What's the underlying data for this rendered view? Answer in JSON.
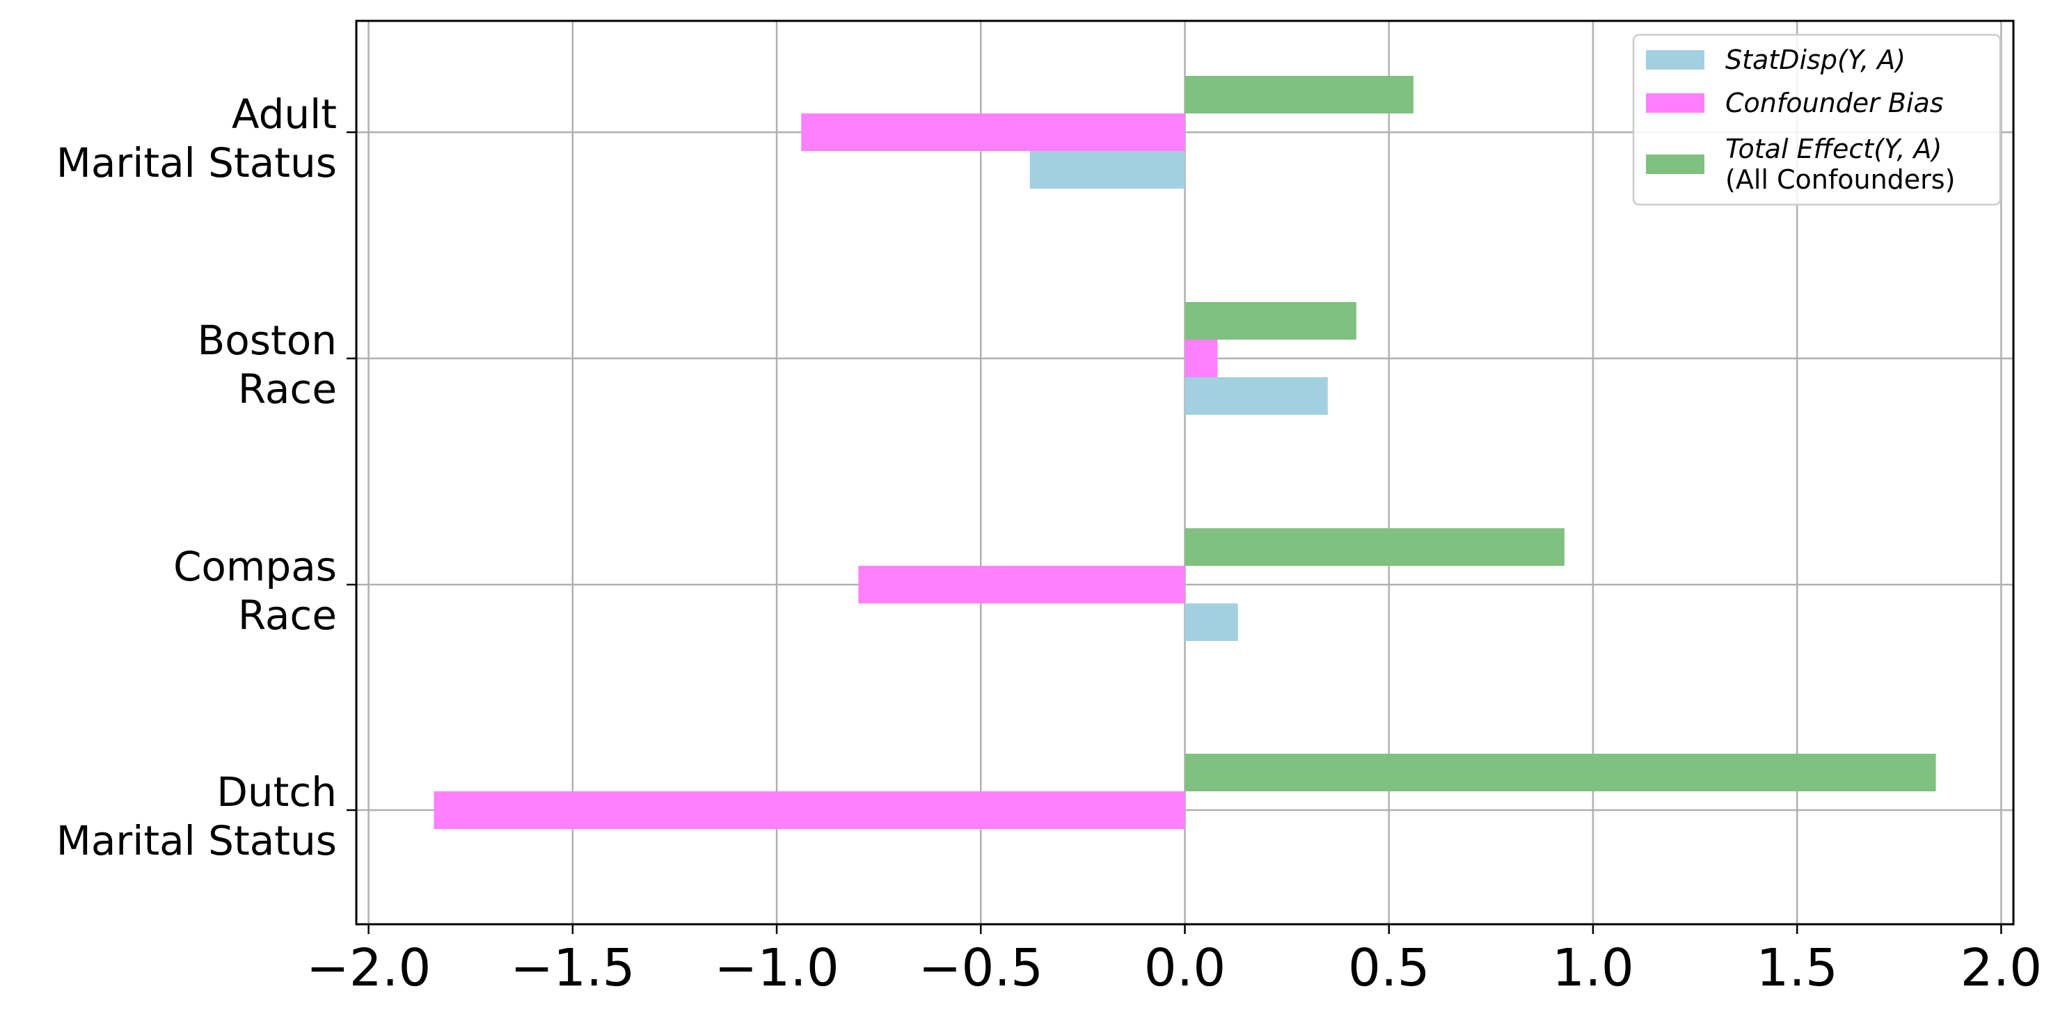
{
  "chart_data": {
    "type": "bar",
    "orientation": "horizontal",
    "categories": [
      [
        "Adult",
        "Marital Status"
      ],
      [
        "Boston",
        "Race"
      ],
      [
        "Compas",
        "Race"
      ],
      [
        "Dutch",
        "Marital Status"
      ]
    ],
    "series": [
      {
        "name": "StatDisp(Y, A)",
        "legend_lines": [
          "StatDisp(Y, A)"
        ],
        "color": "#a3d0e0",
        "values": [
          -0.38,
          0.35,
          0.13,
          0.0
        ]
      },
      {
        "name": "Confounder Bias",
        "legend_lines": [
          "Confounder Bias"
        ],
        "color": "#ff80ff",
        "values": [
          -0.94,
          0.08,
          -0.8,
          -1.84
        ]
      },
      {
        "name": "Total Effect(Y, A) (All Confounders)",
        "legend_lines": [
          "Total Effect(Y, A)",
          " (All Confounders)"
        ],
        "color": "#80c080",
        "values": [
          0.56,
          0.42,
          0.93,
          1.84
        ]
      }
    ],
    "x_ticks": [
      "−2.0",
      "−1.5",
      "−1.0",
      "−0.5",
      "0.0",
      "0.5",
      "1.0",
      "1.5",
      "2.0"
    ],
    "x_tick_values": [
      -2.0,
      -1.5,
      -1.0,
      -0.5,
      0.0,
      0.5,
      1.0,
      1.5,
      2.0
    ],
    "xlim": [
      -2.03,
      2.03
    ],
    "title": "",
    "xlabel": "",
    "ylabel": "",
    "grid": true,
    "legend_position": "top-right"
  }
}
